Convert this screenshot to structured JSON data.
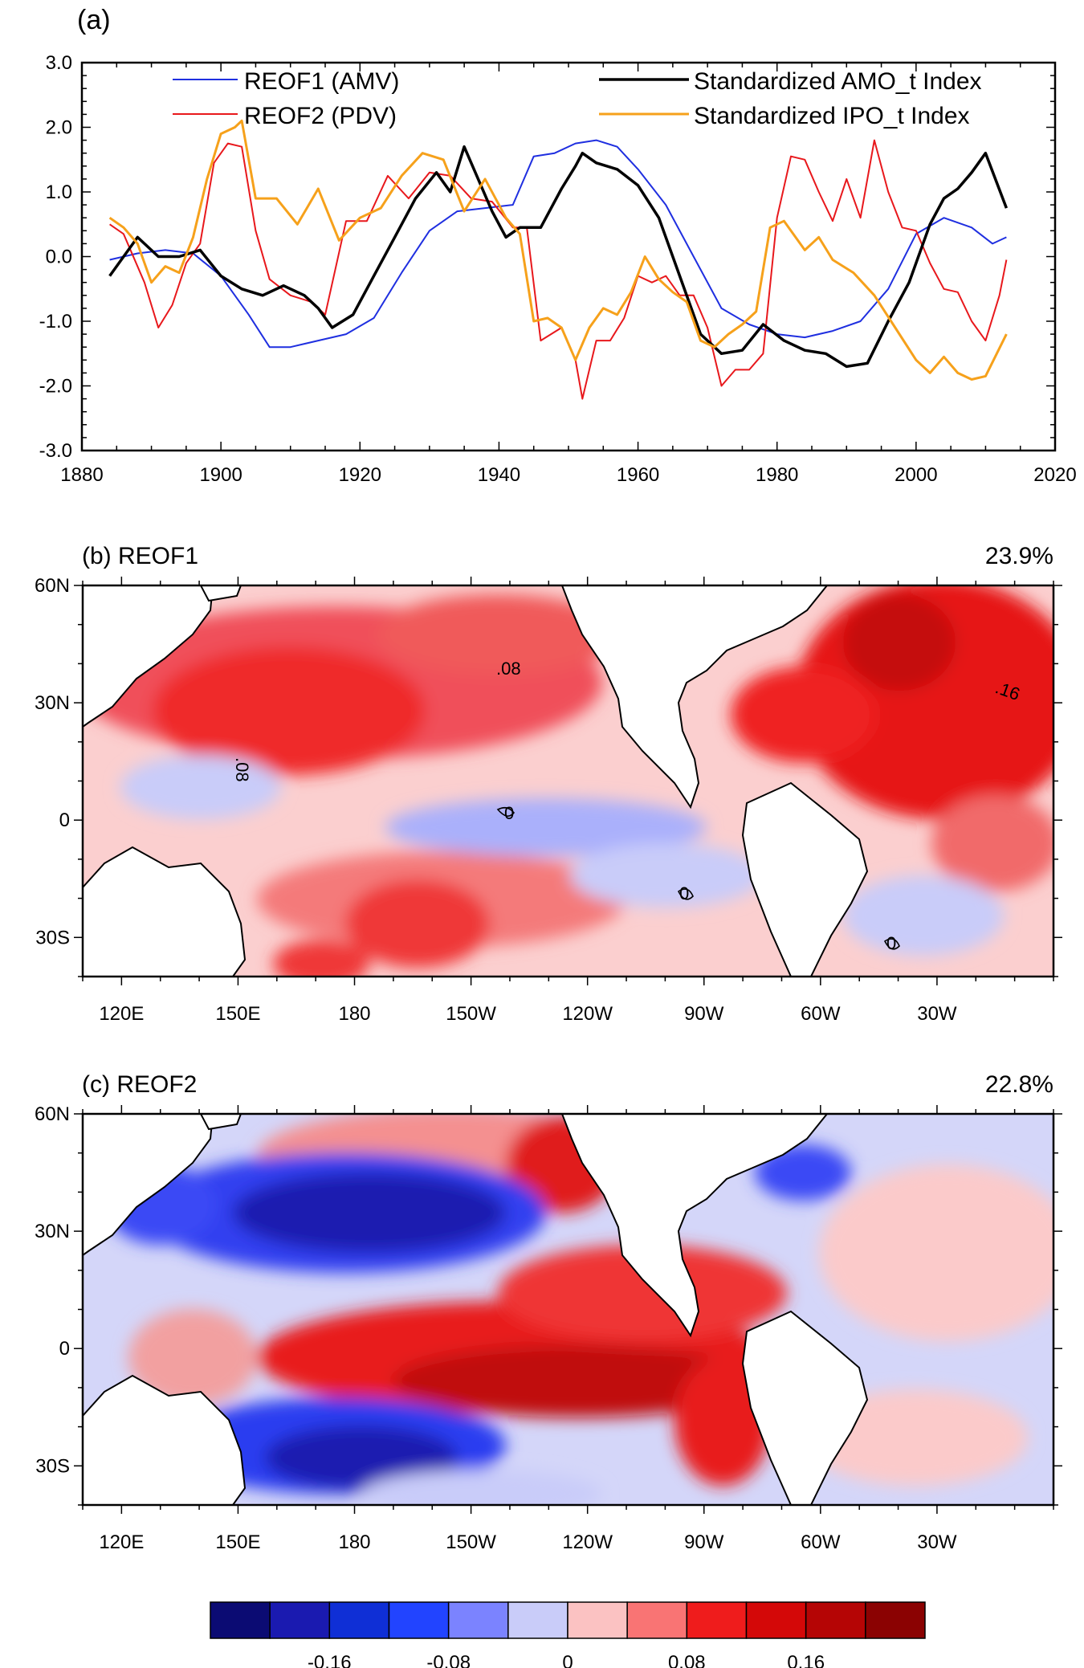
{
  "chart_data": [
    {
      "type": "line",
      "panel_label": "(a)",
      "xlim": [
        1880,
        2020
      ],
      "ylim": [
        -3.0,
        3.0
      ],
      "x_ticks": [
        1880,
        1900,
        1920,
        1940,
        1960,
        1980,
        2000,
        2020
      ],
      "x_tick_labels": [
        "1880",
        "1900",
        "1920",
        "1940",
        "1960",
        "1980",
        "2000",
        "2020"
      ],
      "y_ticks": [
        -3.0,
        -2.0,
        -1.0,
        0.0,
        1.0,
        2.0,
        3.0
      ],
      "y_tick_labels": [
        "-3.0",
        "-2.0",
        "-1.0",
        "0.0",
        "1.0",
        "2.0",
        "3.0"
      ],
      "series": [
        {
          "name": "REOF1 (AMV)",
          "color": "#1f2fe0",
          "width": 2,
          "x": [
            1884,
            1888,
            1892,
            1896,
            1900,
            1904,
            1907,
            1910,
            1914,
            1918,
            1922,
            1926,
            1930,
            1934,
            1938,
            1942,
            1945,
            1948,
            1951,
            1954,
            1957,
            1960,
            1964,
            1968,
            1972,
            1976,
            1980,
            1984,
            1988,
            1992,
            1996,
            2000,
            2004,
            2008,
            2011,
            2013
          ],
          "values": [
            -0.05,
            0.05,
            0.1,
            0.05,
            -0.3,
            -0.9,
            -1.4,
            -1.4,
            -1.3,
            -1.2,
            -0.95,
            -0.25,
            0.4,
            0.7,
            0.75,
            0.8,
            1.55,
            1.6,
            1.75,
            1.8,
            1.7,
            1.35,
            0.8,
            0.0,
            -0.8,
            -1.05,
            -1.2,
            -1.25,
            -1.15,
            -1.0,
            -0.5,
            0.35,
            0.6,
            0.45,
            0.2,
            0.3
          ]
        },
        {
          "name": "REOF2 (PDV)",
          "color": "#e8181c",
          "width": 2,
          "x": [
            1884,
            1886,
            1889,
            1891,
            1893,
            1895,
            1897,
            1899,
            1901,
            1903,
            1905,
            1907,
            1910,
            1913,
            1915,
            1918,
            1921,
            1924,
            1927,
            1930,
            1933,
            1936,
            1939,
            1942,
            1944,
            1946,
            1949,
            1951,
            1952,
            1954,
            1956,
            1958,
            1960,
            1962,
            1964,
            1966,
            1968,
            1970,
            1972,
            1974,
            1976,
            1978,
            1980,
            1982,
            1984,
            1986,
            1988,
            1990,
            1992,
            1994,
            1996,
            1998,
            2000,
            2002,
            2004,
            2006,
            2008,
            2010,
            2012,
            2013
          ],
          "values": [
            0.5,
            0.35,
            -0.4,
            -1.1,
            -0.75,
            -0.1,
            0.2,
            1.45,
            1.75,
            1.7,
            0.4,
            -0.35,
            -0.6,
            -0.7,
            -0.9,
            0.55,
            0.55,
            1.25,
            0.9,
            1.3,
            1.25,
            0.9,
            0.85,
            0.45,
            0.45,
            -1.3,
            -1.1,
            -1.6,
            -2.2,
            -1.3,
            -1.3,
            -0.95,
            -0.3,
            -0.4,
            -0.3,
            -0.6,
            -0.6,
            -1.1,
            -2.0,
            -1.75,
            -1.75,
            -1.5,
            0.6,
            1.55,
            1.5,
            1.0,
            0.55,
            1.2,
            0.6,
            1.8,
            1.0,
            0.45,
            0.4,
            -0.1,
            -0.5,
            -0.55,
            -1.0,
            -1.3,
            -0.6,
            -0.05
          ]
        },
        {
          "name": "Standardized AMO_t Index",
          "color": "#000000",
          "width": 3.5,
          "x": [
            1884,
            1888,
            1891,
            1894,
            1897,
            1900,
            1903,
            1906,
            1909,
            1912,
            1914,
            1916,
            1919,
            1922,
            1925,
            1928,
            1931,
            1933,
            1935,
            1937,
            1939,
            1941,
            1943,
            1946,
            1949,
            1951,
            1952,
            1954,
            1957,
            1960,
            1963,
            1966,
            1969,
            1972,
            1975,
            1978,
            1981,
            1984,
            1987,
            1990,
            1993,
            1996,
            1999,
            2002,
            2004,
            2006,
            2008,
            2010,
            2013
          ],
          "values": [
            -0.3,
            0.3,
            0.0,
            0.0,
            0.1,
            -0.3,
            -0.5,
            -0.6,
            -0.45,
            -0.6,
            -0.8,
            -1.1,
            -0.9,
            -0.3,
            0.3,
            0.9,
            1.3,
            1.0,
            1.7,
            1.2,
            0.7,
            0.3,
            0.45,
            0.45,
            1.05,
            1.4,
            1.6,
            1.45,
            1.35,
            1.1,
            0.6,
            -0.3,
            -1.2,
            -1.5,
            -1.45,
            -1.05,
            -1.3,
            -1.45,
            -1.5,
            -1.7,
            -1.65,
            -1.0,
            -0.4,
            0.5,
            0.9,
            1.05,
            1.3,
            1.6,
            0.75
          ]
        },
        {
          "name": "Standardized IPO_t Index",
          "color": "#f6a11b",
          "width": 3,
          "x": [
            1884,
            1886,
            1888,
            1890,
            1892,
            1894,
            1896,
            1898,
            1900,
            1902,
            1903,
            1905,
            1908,
            1911,
            1914,
            1917,
            1920,
            1923,
            1926,
            1929,
            1932,
            1935,
            1938,
            1941,
            1943,
            1945,
            1947,
            1949,
            1951,
            1953,
            1955,
            1957,
            1959,
            1961,
            1963,
            1965,
            1967,
            1969,
            1971,
            1973,
            1975,
            1977,
            1979,
            1981,
            1984,
            1986,
            1988,
            1991,
            1994,
            1997,
            2000,
            2002,
            2004,
            2006,
            2008,
            2010,
            2013
          ],
          "values": [
            0.6,
            0.45,
            0.2,
            -0.4,
            -0.15,
            -0.25,
            0.3,
            1.2,
            1.9,
            2.0,
            2.1,
            0.9,
            0.9,
            0.5,
            1.05,
            0.25,
            0.6,
            0.75,
            1.25,
            1.6,
            1.5,
            0.7,
            1.2,
            0.6,
            0.35,
            -1.0,
            -0.95,
            -1.1,
            -1.6,
            -1.1,
            -0.8,
            -0.9,
            -0.55,
            0.0,
            -0.35,
            -0.55,
            -0.7,
            -1.3,
            -1.4,
            -1.2,
            -1.05,
            -0.85,
            0.45,
            0.55,
            0.1,
            0.3,
            -0.05,
            -0.25,
            -0.6,
            -1.1,
            -1.6,
            -1.8,
            -1.55,
            -1.8,
            -1.9,
            -1.85,
            -1.2
          ]
        }
      ]
    },
    {
      "type": "heatmap",
      "panel_label": "(b) REOF1",
      "variance_text": "23.9%",
      "lat_tick_labels": [
        "60N",
        "30N",
        "0",
        "30S"
      ],
      "lon_tick_labels": [
        "120E",
        "150E",
        "180",
        "150W",
        "120W",
        "90W",
        "60W",
        "30W"
      ],
      "lat_range": [
        -40,
        60
      ],
      "lon_range_east": [
        110,
        360
      ],
      "contour_labels": [
        ".08",
        ".08",
        ".16",
        "0",
        "0",
        "0"
      ],
      "field": "Atlantic and North Pacific warm; equatorial east Pacific weakly cool"
    },
    {
      "type": "heatmap",
      "panel_label": "(c) REOF2",
      "variance_text": "22.8%",
      "lat_tick_labels": [
        "60N",
        "30N",
        "0",
        "30S"
      ],
      "lon_tick_labels": [
        "120E",
        "150E",
        "180",
        "150W",
        "120W",
        "90W",
        "60W",
        "30W"
      ],
      "lat_range": [
        -40,
        60
      ],
      "lon_range_east": [
        110,
        360
      ],
      "field": "Tropical Pacific horseshoe warm; central North and South Pacific cool"
    },
    {
      "type": "colorbar",
      "colors": [
        "#0b0b73",
        "#1a1ab0",
        "#0f2fd6",
        "#2244ff",
        "#7b83ff",
        "#c9ccf9",
        "#fbc2c2",
        "#f97474",
        "#ef1c1c",
        "#d40808",
        "#b50505",
        "#8b0202"
      ],
      "tick_values": [
        -0.16,
        -0.08,
        0,
        0.08,
        0.16
      ],
      "tick_labels": [
        "-0.16",
        "-0.08",
        "0",
        "0.08",
        "0.16"
      ]
    }
  ]
}
